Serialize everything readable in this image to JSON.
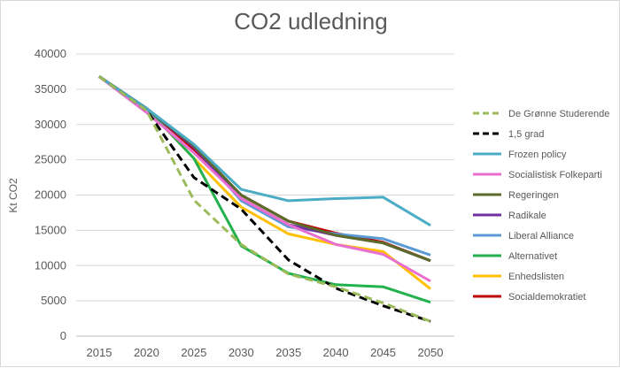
{
  "chart_data": {
    "type": "line",
    "title": "CO2 udledning",
    "xlabel": "",
    "ylabel": "Kt CO2",
    "x": [
      2015,
      2020,
      2025,
      2030,
      2035,
      2040,
      2045,
      2050
    ],
    "ylim": [
      0,
      40000
    ],
    "yticks": [
      0,
      5000,
      10000,
      15000,
      20000,
      25000,
      30000,
      35000,
      40000
    ],
    "grid": true,
    "legend_position": "right",
    "series": [
      {
        "name": "De Grønne Studerende",
        "color": "#9bbb59",
        "dash": "dashed",
        "values": [
          36800,
          32000,
          19300,
          13000,
          8800,
          7000,
          4700,
          2100
        ]
      },
      {
        "name": "1,5 grad",
        "color": "#000000",
        "dash": "dashed",
        "values": [
          36800,
          32000,
          22500,
          18000,
          10800,
          6800,
          4300,
          2100
        ]
      },
      {
        "name": "Frozen policy",
        "color": "#4bacc6",
        "dash": "solid",
        "values": [
          36800,
          32300,
          27200,
          20800,
          19200,
          19500,
          19700,
          15700
        ]
      },
      {
        "name": "Socialistisk Folkeparti",
        "color": "#e86fd0",
        "dash": "solid",
        "values": [
          36800,
          31700,
          26000,
          19500,
          15800,
          13000,
          11600,
          7800
        ]
      },
      {
        "name": "Regeringen",
        "color": "#5b6b2a",
        "dash": "solid",
        "values": [
          36800,
          32300,
          27000,
          20000,
          16300,
          14300,
          13200,
          10700
        ]
      },
      {
        "name": "Radikale",
        "color": "#7030a0",
        "dash": "solid",
        "values": [
          36800,
          32300,
          26800,
          19500,
          15800,
          14300,
          13200,
          10700
        ]
      },
      {
        "name": "Liberal Alliance",
        "color": "#5b9bd5",
        "dash": "solid",
        "values": [
          36800,
          32300,
          26900,
          19200,
          15500,
          14500,
          13800,
          11500
        ]
      },
      {
        "name": "Alternativet",
        "color": "#22b14c",
        "dash": "solid",
        "values": [
          36800,
          32300,
          25200,
          12800,
          8900,
          7300,
          7000,
          4800
        ]
      },
      {
        "name": "Enhedslisten",
        "color": "#ffc000",
        "dash": "solid",
        "values": [
          36800,
          32300,
          25200,
          18300,
          14500,
          13000,
          12000,
          6700
        ]
      },
      {
        "name": "Socialdemokratiet",
        "color": "#c00000",
        "dash": "solid",
        "values": [
          36800,
          32300,
          26500,
          20000,
          16300,
          14600,
          13300,
          10700
        ]
      }
    ]
  }
}
